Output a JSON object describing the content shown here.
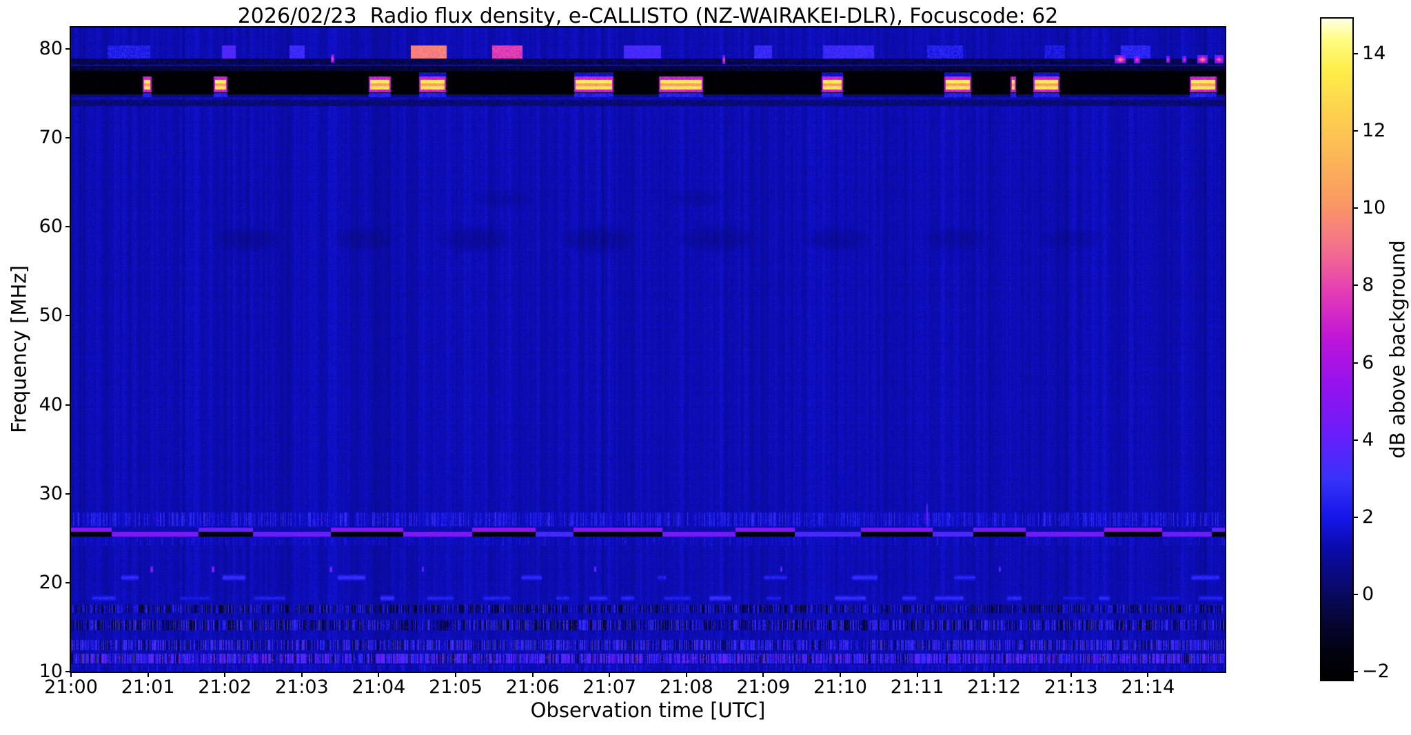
{
  "figure": {
    "title": "2026/02/23  Radio flux density, e-CALLISTO (NZ-WAIRAKEI-DLR), Focuscode: 62",
    "xlabel": "Observation time [UTC]",
    "ylabel": "Frequency [MHz]",
    "colorbar_label": "dB above background"
  },
  "observation": {
    "date": "2026/02/23",
    "network": "e-CALLISTO",
    "station": "NZ-WAIRAKEI-DLR",
    "focuscode": "62"
  },
  "chart_data": {
    "type": "heatmap",
    "subtype": "radio-spectrogram",
    "title": "2026/02/23  Radio flux density, e-CALLISTO (NZ-WAIRAKEI-DLR), Focuscode: 62",
    "xlabel": "Observation time [UTC]",
    "ylabel": "Frequency [MHz]",
    "grid": false,
    "time_axis": {
      "start": "21:00",
      "span_minutes": 15,
      "ticks": [
        "21:00",
        "21:01",
        "21:02",
        "21:03",
        "21:04",
        "21:05",
        "21:06",
        "21:07",
        "21:08",
        "21:09",
        "21:10",
        "21:11",
        "21:12",
        "21:13",
        "21:14"
      ]
    },
    "freq_axis": {
      "range": [
        10,
        82.4
      ],
      "ticks": [
        80,
        70,
        60,
        50,
        40,
        30,
        20,
        10
      ]
    },
    "colorbar": {
      "label": "dB above background",
      "range": [
        -2.21,
        14.91
      ],
      "ticks": [
        14,
        12,
        10,
        8,
        6,
        4,
        2,
        0,
        -2
      ],
      "tick_labels": [
        "14",
        "12",
        "10",
        "8",
        "6",
        "4",
        "2",
        "0",
        "−2"
      ]
    },
    "colormap": {
      "name": "gnuplot2-like (black-blue-violet-magenta-orange-yellow-white)",
      "stops": [
        [
          -2.21,
          "#000000"
        ],
        [
          -1.5,
          "#02020f"
        ],
        [
          -0.6,
          "#06063a"
        ],
        [
          0.3,
          "#0a0a72"
        ],
        [
          1.2,
          "#0b0bab"
        ],
        [
          2.0,
          "#1616e8"
        ],
        [
          3.0,
          "#3832fb"
        ],
        [
          4.2,
          "#6b1dfb"
        ],
        [
          5.4,
          "#9313ef"
        ],
        [
          6.6,
          "#bd15d9"
        ],
        [
          7.8,
          "#e43bb6"
        ],
        [
          9.0,
          "#f4728b"
        ],
        [
          10.2,
          "#fa9a62"
        ],
        [
          11.4,
          "#fcb857"
        ],
        [
          12.6,
          "#fdd44e"
        ],
        [
          13.6,
          "#feee49"
        ],
        [
          14.4,
          "#fffc86"
        ],
        [
          14.91,
          "#ffffe8"
        ]
      ]
    },
    "background_level_db": [
      0.5,
      2.1
    ],
    "features": [
      {
        "kind": "blue_patches",
        "desc": "intermittent blue interference patches near 79-80 MHz",
        "freq": [
          78.95,
          80.35
        ],
        "v": [
          2.0,
          3.6
        ],
        "on_len": [
          16,
          85
        ],
        "off_len": [
          25,
          170
        ],
        "hot_chance": 0.05,
        "hot_v": [
          6.5,
          9.5
        ]
      },
      {
        "kind": "dark_row",
        "desc": "dark gap row below the 79 MHz patches",
        "freq": [
          78.2,
          78.9
        ],
        "v": [
          -1.3,
          0.7
        ]
      },
      {
        "kind": "rfi_band",
        "desc": "strong broadcast RFI band 75-78 MHz: black dropout with saturated white/yellow/orange bursts",
        "freq": [
          74.9,
          78.05
        ],
        "rows": [
          [
            76.5,
            76.9,
            7.0,
            2.0
          ],
          [
            76.15,
            76.5,
            13.6,
            1.5
          ],
          [
            75.8,
            76.15,
            10.5,
            2.0
          ],
          [
            75.45,
            75.8,
            13.2,
            1.6
          ],
          [
            75.1,
            75.45,
            7.0,
            2.0
          ]
        ],
        "glow_below": [
          74.55,
          75.08
        ],
        "glow_above": [
          76.9,
          77.4
        ],
        "on_len": [
          5,
          70
        ],
        "off_len": [
          8,
          230
        ],
        "weak_chance": 0.17
      },
      {
        "kind": "dark_row",
        "desc": "faint dark lane near 74 MHz",
        "freq": [
          73.55,
          74.25
        ],
        "v": [
          -0.4,
          1.1
        ]
      },
      {
        "kind": "smudges",
        "desc": "faint darker blotches near 58-63 MHz",
        "items": [
          {
            "t": 2.3,
            "f": 58.6,
            "rt": 55,
            "rf": 20,
            "dv": -0.5
          },
          {
            "t": 3.8,
            "f": 58.6,
            "rt": 50,
            "rf": 20,
            "dv": -0.45
          },
          {
            "t": 5.25,
            "f": 58.6,
            "rt": 60,
            "rf": 22,
            "dv": -0.55
          },
          {
            "t": 6.85,
            "f": 58.6,
            "rt": 60,
            "rf": 22,
            "dv": -0.55
          },
          {
            "t": 8.4,
            "f": 58.6,
            "rt": 65,
            "rf": 22,
            "dv": -0.5
          },
          {
            "t": 9.95,
            "f": 58.6,
            "rt": 55,
            "rf": 20,
            "dv": -0.45
          },
          {
            "t": 11.5,
            "f": 58.6,
            "rt": 55,
            "rf": 20,
            "dv": -0.4
          },
          {
            "t": 13.0,
            "f": 58.6,
            "rt": 50,
            "rf": 18,
            "dv": -0.35
          },
          {
            "t": 5.6,
            "f": 63.2,
            "rt": 45,
            "rf": 14,
            "dv": -0.3
          },
          {
            "t": 8.1,
            "f": 63.2,
            "rt": 45,
            "rf": 14,
            "dv": -0.3
          }
        ]
      },
      {
        "kind": "speckle",
        "desc": "speckled ionospheric activity just above 26 MHz line",
        "freq": [
          26.35,
          27.9
        ],
        "base": null,
        "density": 0.55,
        "v": [
          1.2,
          2.9
        ],
        "dot_chance": 0.003,
        "dot_v": [
          4.5,
          6.5
        ]
      },
      {
        "kind": "dashed_line",
        "desc": "CB/ham band at ~26 MHz: dashed line hopping between bright blue and black dropout",
        "freq_hi": [
          25.7,
          26.2
        ],
        "freq_lo": [
          25.2,
          25.7
        ],
        "seg_len": [
          45,
          130
        ],
        "v_on": [
          3.4,
          5.4
        ],
        "v_off": -1.8,
        "magenta_chance": 0.14,
        "magenta_v": 6.4
      },
      {
        "kind": "speckle",
        "desc": "faint texture below 26 MHz line",
        "freq": [
          24.2,
          25.1
        ],
        "base": null,
        "density": 0.45,
        "v": [
          0.8,
          2.0
        ],
        "dot_chance": 0,
        "dot_v": [
          0,
          0
        ]
      },
      {
        "kind": "blobs",
        "desc": "soft blue blobs near 20.5 MHz",
        "freq": [
          20.2,
          21.0
        ],
        "density": 0.22,
        "len": [
          18,
          55
        ],
        "v": [
          2.4,
          3.4
        ],
        "gap": [
          40,
          160
        ]
      },
      {
        "kind": "blobs",
        "desc": "soft blue blobs near 18.3 MHz",
        "freq": [
          17.9,
          18.65
        ],
        "density": 0.5,
        "len": [
          14,
          55
        ],
        "v": [
          2.0,
          3.4
        ],
        "gap": [
          8,
          60
        ]
      },
      {
        "kind": "speckle",
        "desc": "dense dark speckle band ~17 MHz",
        "freq": [
          16.6,
          17.5
        ],
        "base": -1.2,
        "density": 0.72,
        "v": [
          0.3,
          2.6
        ],
        "dot_chance": 0.004,
        "dot_v": [
          3.5,
          5.5
        ]
      },
      {
        "kind": "speckle",
        "desc": "dense dark speckle band ~15.2 MHz with bright dots",
        "freq": [
          14.65,
          15.8
        ],
        "base": -1.1,
        "density": 0.7,
        "v": [
          0.4,
          3.2
        ],
        "dot_chance": 0.01,
        "dot_v": [
          4.5,
          7.0
        ]
      },
      {
        "kind": "speckle",
        "desc": "speckle band ~13 MHz",
        "freq": [
          12.4,
          13.55
        ],
        "base": -0.4,
        "density": 0.75,
        "v": [
          0.9,
          3.6
        ],
        "dot_chance": 0.007,
        "dot_v": [
          4.5,
          6.5
        ]
      },
      {
        "kind": "speckle",
        "desc": "bright speckle band ~11.5 MHz with magenta dots",
        "freq": [
          10.95,
          12.0
        ],
        "base": -0.5,
        "density": 0.8,
        "v": [
          1.4,
          4.4
        ],
        "dot_chance": 0.02,
        "dot_v": [
          5.5,
          8.0
        ]
      },
      {
        "kind": "speckle",
        "desc": "mild speckle at bottom edge",
        "freq": [
          10.1,
          10.8
        ],
        "base": null,
        "density": 0.4,
        "v": [
          0.7,
          2.2
        ],
        "dot_chance": 0,
        "dot_v": [
          0,
          0
        ]
      },
      {
        "kind": "dots",
        "desc": "isolated bright bursts",
        "items": [
          {
            "t": 3.4,
            "f": 78.9,
            "w": 5,
            "h": 12,
            "v": 9.5
          },
          {
            "t": 8.49,
            "f": 78.8,
            "w": 4,
            "h": 13,
            "v": 10.0
          },
          {
            "t": 13.64,
            "f": 78.85,
            "w": 16,
            "h": 12,
            "v": 10.5
          },
          {
            "t": 13.85,
            "f": 78.85,
            "w": 9,
            "h": 11,
            "v": 9.0
          },
          {
            "t": 14.26,
            "f": 78.85,
            "w": 5,
            "h": 10,
            "v": 8.5
          },
          {
            "t": 14.47,
            "f": 78.85,
            "w": 6,
            "h": 10,
            "v": 8.0
          },
          {
            "t": 14.7,
            "f": 78.85,
            "w": 15,
            "h": 12,
            "v": 10.5
          },
          {
            "t": 14.92,
            "f": 78.85,
            "w": 13,
            "h": 12,
            "v": 9.5
          },
          {
            "t": 11.13,
            "f": 27.6,
            "w": 2,
            "h": 34,
            "v": 5.5
          },
          {
            "t": 1.05,
            "f": 21.5,
            "w": 4,
            "h": 9,
            "v": 7.0
          },
          {
            "t": 1.85,
            "f": 21.5,
            "w": 4,
            "h": 9,
            "v": 7.5
          },
          {
            "t": 3.38,
            "f": 21.5,
            "w": 4,
            "h": 9,
            "v": 6.5
          },
          {
            "t": 4.57,
            "f": 21.5,
            "w": 3,
            "h": 8,
            "v": 6.0
          },
          {
            "t": 6.81,
            "f": 21.5,
            "w": 3,
            "h": 8,
            "v": 6.5
          },
          {
            "t": 9.23,
            "f": 21.5,
            "w": 3,
            "h": 8,
            "v": 6.0
          },
          {
            "t": 12.07,
            "f": 21.5,
            "w": 3,
            "h": 8,
            "v": 5.5
          }
        ]
      }
    ]
  }
}
